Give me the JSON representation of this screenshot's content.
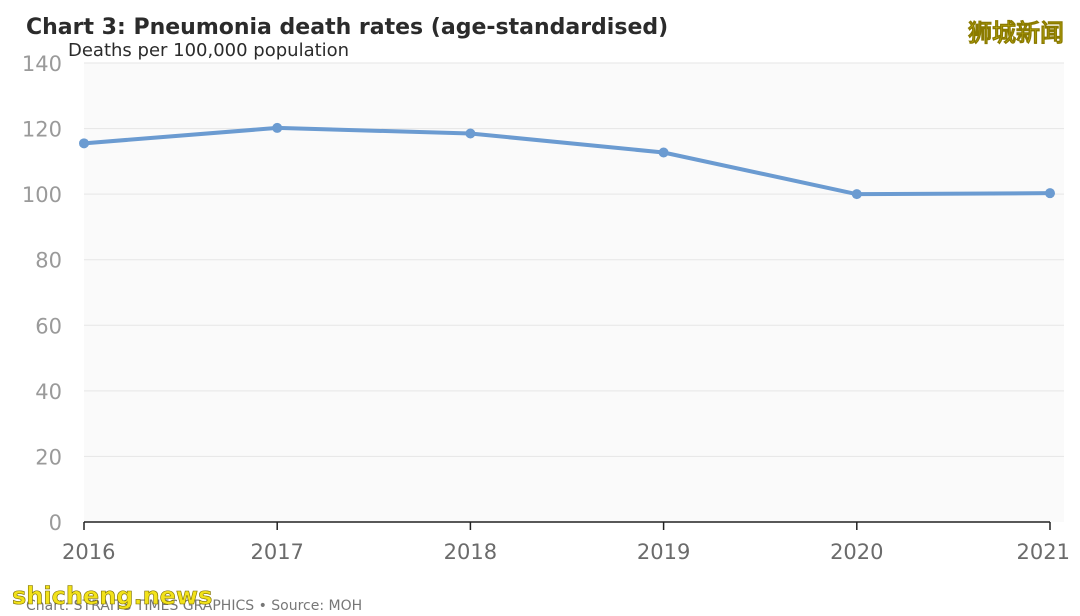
{
  "chart_data": {
    "type": "line",
    "title": "Chart 3: Pneumonia death rates (age-standardised)",
    "ylabel": "Deaths per 100,000 population",
    "xlabel": "",
    "categories": [
      "2016",
      "2017",
      "2018",
      "2019",
      "2020",
      "2021"
    ],
    "series": [
      {
        "values": [
          115.5,
          120.2,
          118.5,
          112.7,
          100.0,
          100.3
        ]
      }
    ],
    "ylim": [
      0,
      140
    ],
    "yticks": [
      "0",
      "20",
      "40",
      "60",
      "80",
      "100",
      "120",
      "140"
    ],
    "grid": true,
    "legend": "none",
    "line_color": "#6b9bd1",
    "source": "Chart: STRAITS TIMES GRAPHICS • Source: MOH"
  },
  "watermarks": {
    "top_right": "狮城新闻",
    "bottom_left": "shicheng.news"
  }
}
